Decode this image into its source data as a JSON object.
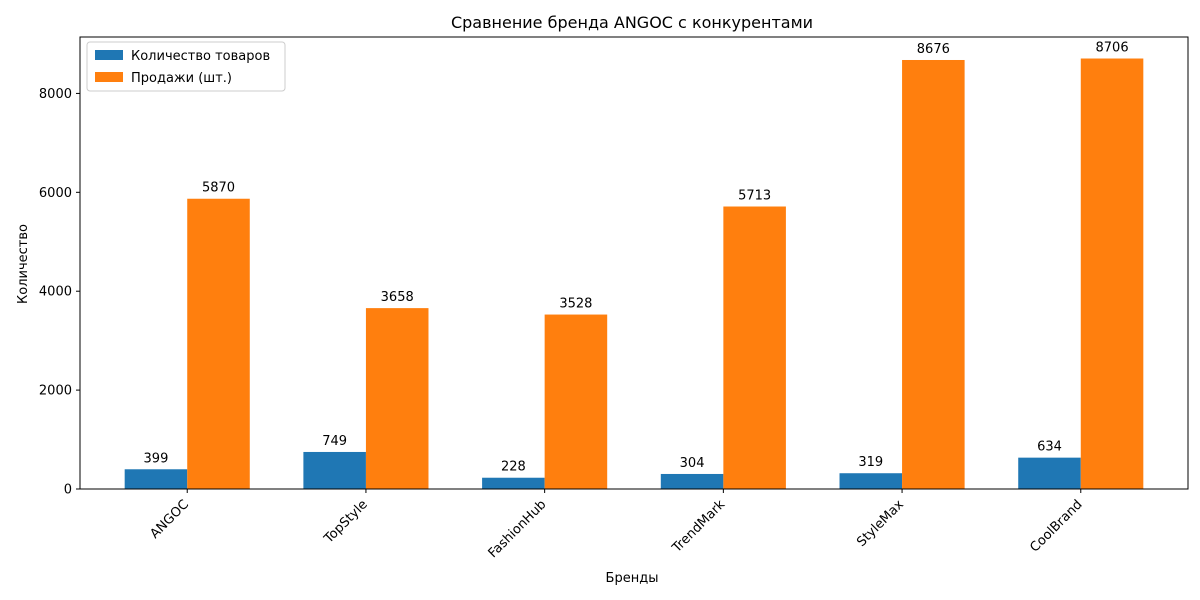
{
  "chart_data": {
    "type": "bar",
    "title": "Сравнение бренда ANGOC с конкурентами",
    "xlabel": "Бренды",
    "ylabel": "Количество",
    "categories": [
      "ANGOC",
      "TopStyle",
      "FashionHub",
      "TrendMark",
      "StyleMax",
      "CoolBrand"
    ],
    "series": [
      {
        "name": "Количество товаров",
        "values": [
          399,
          749,
          228,
          304,
          319,
          634
        ],
        "color": "#1f77b4"
      },
      {
        "name": "Продажи (шт.)",
        "values": [
          5870,
          3658,
          3528,
          5713,
          8676,
          8706
        ],
        "color": "#ff7f0e"
      }
    ],
    "ylim": [
      0,
      9141
    ],
    "yticks": [
      0,
      2000,
      4000,
      6000,
      8000
    ],
    "grid": false,
    "legend": "top-left",
    "data_labels": true
  }
}
